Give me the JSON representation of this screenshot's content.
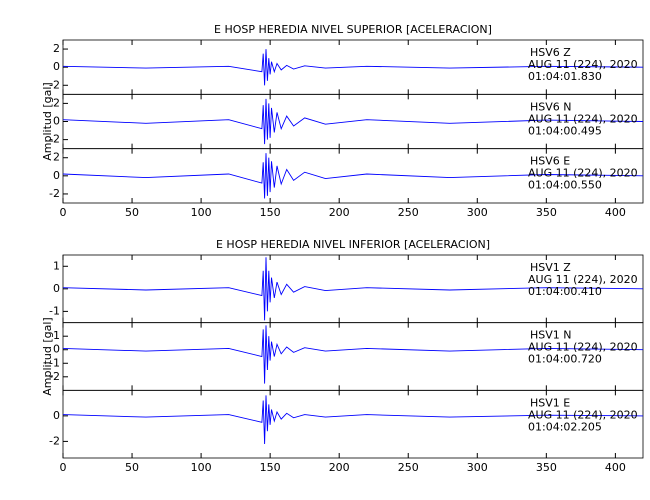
{
  "chart_data": [
    {
      "type": "line",
      "title": "E HOSP HEREDIA NIVEL SUPERIOR [ACELERACION]",
      "y_label": "Amplitud [gal]",
      "xlim": [
        0,
        420
      ],
      "xticks": [
        0,
        50,
        100,
        150,
        200,
        250,
        300,
        350,
        400
      ],
      "color": "#0000ff",
      "x": [
        0,
        60,
        120,
        144,
        145,
        146,
        147,
        148,
        149,
        150,
        151,
        153,
        155,
        158,
        162,
        167,
        175,
        190,
        220,
        280,
        350,
        420
      ],
      "series": [
        {
          "name": "HSV6   Z",
          "annotation": [
            "AUG 11 (224), 2020",
            "01:04:01.830"
          ],
          "ylim": [
            -3,
            3
          ],
          "yticks": [
            -2,
            0,
            2
          ],
          "values": [
            0.1,
            -0.1,
            0.1,
            -0.5,
            1.5,
            -2,
            2,
            -1.5,
            1,
            -0.8,
            0.6,
            -0.5,
            0.4,
            -0.3,
            0.2,
            -0.2,
            0.15,
            -0.1,
            0.1,
            -0.1,
            0.1,
            0
          ]
        },
        {
          "name": "HSV6   N",
          "annotation": [
            "AUG 11 (224), 2020",
            "01:04:00.495"
          ],
          "ylim": [
            -3,
            3
          ],
          "yticks": [
            -2,
            0,
            2
          ],
          "values": [
            0.2,
            -0.2,
            0.2,
            -0.8,
            1.8,
            -2.5,
            2.5,
            -2,
            2,
            -1.8,
            1.5,
            -1.2,
            1,
            -0.8,
            0.6,
            -0.5,
            0.4,
            -0.3,
            0.2,
            -0.2,
            0.15,
            0
          ]
        },
        {
          "name": "HSV6   E",
          "annotation": [
            "AUG 11 (224), 2020",
            "01:04:00.550"
          ],
          "ylim": [
            -3,
            3
          ],
          "yticks": [
            -2,
            0,
            2
          ],
          "values": [
            0.2,
            -0.2,
            0.2,
            -0.8,
            1.5,
            -2.5,
            2.5,
            -2.2,
            2,
            -1.8,
            1.6,
            -1.3,
            1.1,
            -0.9,
            0.7,
            -0.5,
            0.4,
            -0.3,
            0.2,
            -0.2,
            0.15,
            0
          ]
        }
      ]
    },
    {
      "type": "line",
      "title": "E HOSP HEREDIA NIVEL INFERIOR [ACELERACION]",
      "y_label": "Amplitud [gal]",
      "xlim": [
        0,
        420
      ],
      "xticks": [
        0,
        50,
        100,
        150,
        200,
        250,
        300,
        350,
        400
      ],
      "color": "#0000ff",
      "x": [
        0,
        60,
        120,
        144,
        145,
        146,
        147,
        148,
        149,
        150,
        151,
        153,
        155,
        158,
        162,
        167,
        175,
        190,
        220,
        280,
        350,
        420
      ],
      "series": [
        {
          "name": "HSV1   Z",
          "annotation": [
            "AUG 11 (224), 2020",
            "01:04:00.410"
          ],
          "ylim": [
            -1.5,
            1.5
          ],
          "yticks": [
            -1,
            0,
            1
          ],
          "values": [
            0.05,
            -0.05,
            0.05,
            -0.3,
            0.8,
            -1.4,
            1.4,
            -1,
            0.8,
            -0.6,
            0.5,
            -0.4,
            0.3,
            -0.25,
            0.2,
            -0.15,
            0.1,
            -0.08,
            0.05,
            -0.05,
            0.05,
            0
          ]
        },
        {
          "name": "HSV1   N",
          "annotation": [
            "AUG 11 (224), 2020",
            "01:04:00.720"
          ],
          "ylim": [
            -3,
            2
          ],
          "yticks": [
            -2,
            -1,
            0,
            1
          ],
          "values": [
            0.1,
            -0.1,
            0.1,
            -0.5,
            1.5,
            -2.5,
            1.8,
            -1.5,
            1,
            -0.8,
            0.6,
            -0.5,
            0.4,
            -0.3,
            0.2,
            -0.2,
            0.15,
            -0.1,
            0.1,
            -0.1,
            0.1,
            0
          ]
        },
        {
          "name": "HSV1   E",
          "annotation": [
            "AUG 11 (224), 2020",
            "01:04:02.205"
          ],
          "ylim": [
            -3.3,
            2
          ],
          "yticks": [
            -2,
            0
          ],
          "values": [
            0.1,
            -0.1,
            0.1,
            -0.5,
            1.2,
            -2.2,
            1.6,
            -1.2,
            0.9,
            -0.7,
            0.5,
            -0.4,
            0.3,
            -0.25,
            0.2,
            -0.15,
            0.1,
            -0.1,
            0.1,
            -0.1,
            0.05,
            0
          ]
        }
      ]
    }
  ]
}
